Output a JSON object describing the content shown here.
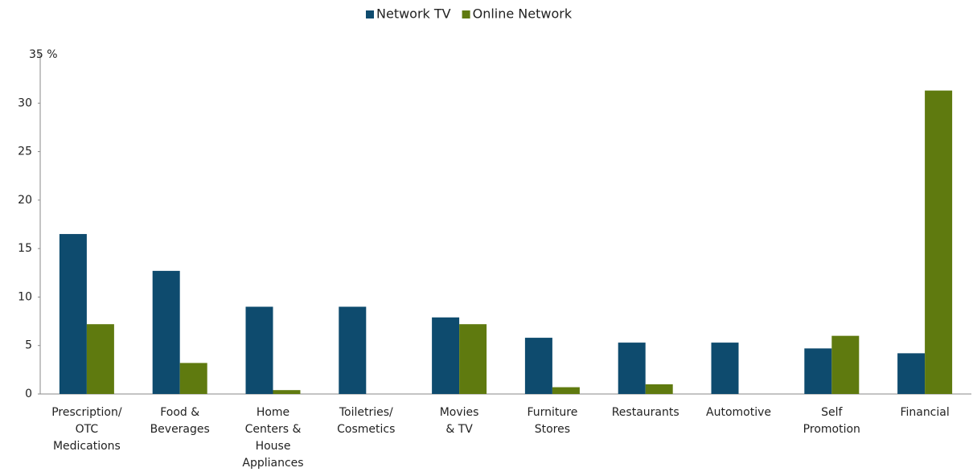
{
  "chart_data": {
    "type": "bar",
    "categories": [
      "Prescription/\nOTC\nMedications",
      "Food &\nBeverages",
      "Home\nCenters &\nHouse\nAppliances",
      "Toiletries/\nCosmetics",
      "Movies\n& TV",
      "Furniture\nStores",
      "Restaurants",
      "Automotive",
      "Self\nPromotion",
      "Financial"
    ],
    "series": [
      {
        "name": "Network TV",
        "color": "#0e4b6e",
        "values": [
          16.5,
          12.7,
          9.0,
          9.0,
          7.9,
          5.8,
          5.3,
          5.3,
          4.7,
          4.2
        ]
      },
      {
        "name": "Online Network",
        "color": "#5f7a0f",
        "values": [
          7.2,
          3.2,
          0.4,
          0,
          7.2,
          0.7,
          1.0,
          0,
          6.0,
          31.3
        ]
      }
    ],
    "ylim": [
      0,
      35
    ],
    "yticks": [
      0,
      5,
      10,
      15,
      20,
      25,
      30,
      {
        "value": 35,
        "label": "35 %"
      }
    ],
    "legend": "top"
  }
}
